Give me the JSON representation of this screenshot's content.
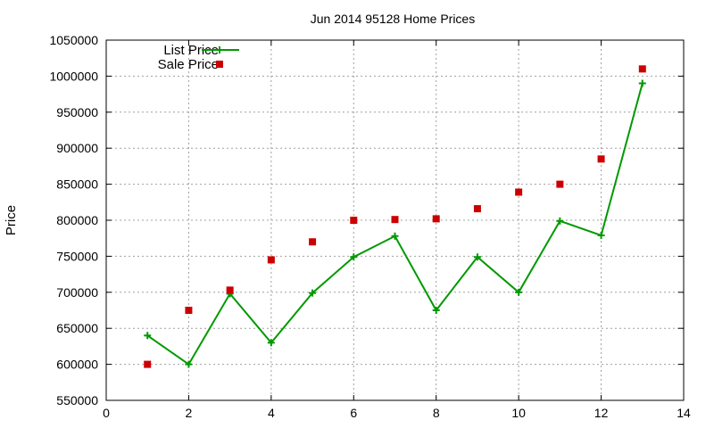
{
  "chart_data": {
    "type": "line",
    "title": "Jun 2014 95128 Home Prices",
    "xlabel": "",
    "ylabel": "Price",
    "xlim": [
      0,
      14
    ],
    "ylim": [
      550000,
      1050000
    ],
    "xticks": [
      0,
      2,
      4,
      6,
      8,
      10,
      12,
      14
    ],
    "yticks": [
      550000,
      600000,
      650000,
      700000,
      750000,
      800000,
      850000,
      900000,
      950000,
      1000000,
      1050000
    ],
    "grid": true,
    "legend_position": "top-left",
    "series": [
      {
        "name": "List Price",
        "style": "line-with-plus-markers",
        "color": "#009900",
        "x": [
          1,
          2,
          3,
          4,
          5,
          6,
          7,
          8,
          9,
          10,
          11,
          12,
          13
        ],
        "y": [
          640000,
          600000,
          698000,
          630000,
          699000,
          749000,
          778000,
          675000,
          749000,
          700000,
          799000,
          779000,
          990000
        ]
      },
      {
        "name": "Sale Price",
        "style": "square-points",
        "color": "#cc0000",
        "x": [
          1,
          2,
          3,
          4,
          5,
          6,
          7,
          8,
          9,
          10,
          11,
          12,
          13
        ],
        "y": [
          600000,
          675000,
          703000,
          745000,
          770000,
          800000,
          801000,
          802000,
          816000,
          839000,
          850000,
          885000,
          1010000
        ]
      }
    ]
  }
}
